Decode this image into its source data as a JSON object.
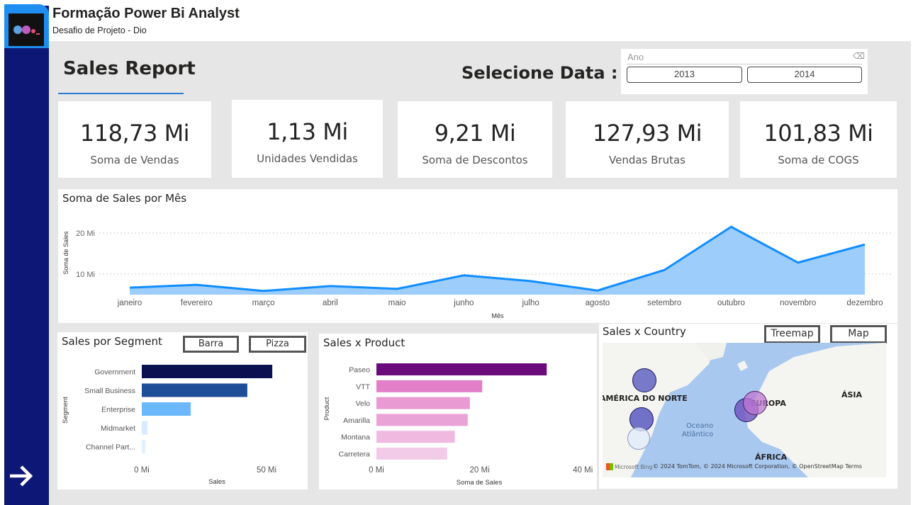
{
  "header": {
    "title": "Formação Power Bi Analyst",
    "subtitle": "Desafio de Projeto -  Dio",
    "logo_text": "dio."
  },
  "report": {
    "title": "Sales Report",
    "select_label": "Selecione Data :"
  },
  "slicer": {
    "label": "Ano",
    "options": [
      "2013",
      "2014"
    ],
    "icon": "eraser-icon"
  },
  "kpis": [
    {
      "value": "118,73 Mi",
      "label": "Soma de Vendas"
    },
    {
      "value": "1,13 Mi",
      "label": "Unidades Vendidas"
    },
    {
      "value": "9,21 Mi",
      "label": "Soma de Descontos"
    },
    {
      "value": "127,93 Mi",
      "label": "Vendas Brutas"
    },
    {
      "value": "101,83 Mi",
      "label": "Soma de COGS"
    }
  ],
  "nav": {
    "icon": "arrow-right-icon"
  },
  "chart_data": [
    {
      "type": "area",
      "title": "Soma de Sales por Mês",
      "xlabel": "Mês",
      "ylabel": "Soma de Sales",
      "categories": [
        "janeiro",
        "fevereiro",
        "março",
        "abril",
        "maio",
        "junho",
        "julho",
        "agosto",
        "setembro",
        "outubro",
        "novembro",
        "dezembro"
      ],
      "values": [
        6.7,
        7.4,
        5.9,
        7.1,
        6.4,
        9.7,
        8.3,
        6.0,
        11.0,
        21.5,
        12.8,
        17.2
      ],
      "yticks": [
        "10 Mi",
        "20 Mi"
      ],
      "ytick_values": [
        10,
        20
      ],
      "ylim": [
        0,
        25
      ],
      "grid": true,
      "color": "#118dff"
    },
    {
      "type": "bar",
      "orientation": "horizontal",
      "title": "Sales por Segment",
      "xlabel": "Sales",
      "ylabel": "Segment",
      "categories": [
        "Government",
        "Small Business",
        "Enterprise",
        "Midmarket",
        "Channel Part..."
      ],
      "values": [
        52.3,
        42.3,
        19.6,
        2.3,
        1.4
      ],
      "xticks": [
        "0 Mi",
        "50 Mi"
      ],
      "xtick_values": [
        0,
        50
      ],
      "colors": [
        "#0a1050",
        "#1f4e99",
        "#6cb8ff",
        "#d8ebff",
        "#e3f0ff"
      ],
      "buttons": [
        "Barra",
        "Pizza"
      ]
    },
    {
      "type": "bar",
      "orientation": "horizontal",
      "title": "Sales x Product",
      "xlabel": "Soma de Sales",
      "ylabel": "Product",
      "categories": [
        "Paseo",
        "VTT",
        "Velo",
        "Amarilla",
        "Montana",
        "Carretera"
      ],
      "values": [
        33.0,
        20.5,
        18.1,
        17.7,
        15.2,
        13.7
      ],
      "xticks": [
        "0 Mi",
        "20 Mi",
        "40 Mi"
      ],
      "xtick_values": [
        0,
        20,
        40
      ],
      "colors": [
        "#6b0a7a",
        "#e37fc8",
        "#e99ad2",
        "#eaa3d6",
        "#efb9e0",
        "#f1cbe8"
      ]
    }
  ],
  "map": {
    "title": "Sales x Country",
    "buttons": [
      "Treemap",
      "Map"
    ],
    "labels": [
      "AMÉRICA DO NORTE",
      "EUROPA",
      "ÁSIA",
      "ÁFRICA",
      "Oceano",
      "Atlântico"
    ],
    "attribution": "© 2024 TomTom, © 2024 Microsoft Corporation, © OpenStreetMap  Terms",
    "brand": "Microsoft Bing"
  }
}
